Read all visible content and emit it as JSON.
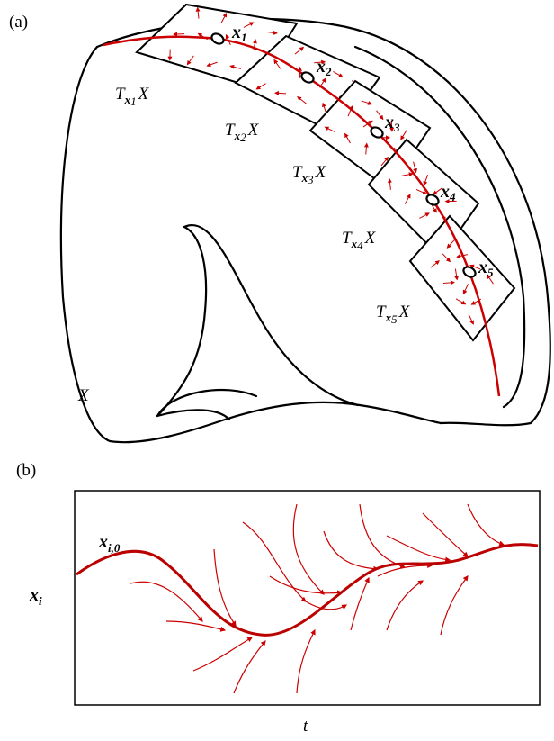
{
  "panel_a": {
    "label": "(a)",
    "manifold_label": "X",
    "points": [
      {
        "symbol": "x",
        "index": "1"
      },
      {
        "symbol": "x",
        "index": "2"
      },
      {
        "symbol": "x",
        "index": "3"
      },
      {
        "symbol": "x",
        "index": "4"
      },
      {
        "symbol": "x",
        "index": "5"
      }
    ],
    "tangent_spaces": [
      {
        "symbol": "T",
        "point": "x",
        "index": "1",
        "space": "X"
      },
      {
        "symbol": "T",
        "point": "x",
        "index": "2",
        "space": "X"
      },
      {
        "symbol": "T",
        "point": "x",
        "index": "3",
        "space": "X"
      },
      {
        "symbol": "T",
        "point": "x",
        "index": "4",
        "space": "X"
      },
      {
        "symbol": "T",
        "point": "x",
        "index": "5",
        "space": "X"
      }
    ]
  },
  "panel_b": {
    "label": "(b)",
    "initial": {
      "symbol": "x",
      "index": "i,0"
    },
    "y_label": {
      "symbol": "x",
      "index": "i"
    },
    "x_label": "t"
  }
}
